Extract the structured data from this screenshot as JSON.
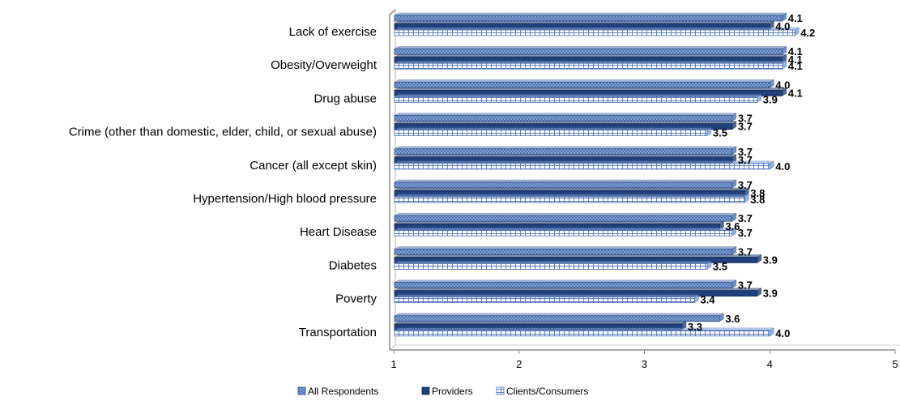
{
  "chart_data": {
    "type": "bar",
    "orientation": "horizontal",
    "categories": [
      "Lack of exercise",
      "Obesity/Overweight",
      "Drug abuse",
      "Crime (other than domestic, elder, child, or sexual abuse)",
      "Cancer (all except skin)",
      "Hypertension/High blood pressure",
      "Heart Disease",
      "Diabetes",
      "Poverty",
      "Transportation"
    ],
    "series": [
      {
        "name": "All Respondents",
        "values": [
          4.1,
          4.1,
          4.0,
          3.7,
          3.7,
          3.7,
          3.7,
          3.7,
          3.7,
          3.6
        ],
        "labels": [
          "4.1",
          "4.1",
          "4.0",
          "3.7",
          "3.7",
          "3.7",
          "3.7",
          "3.7",
          "3.7",
          "3.6"
        ],
        "color": "#4f74b3"
      },
      {
        "name": "Providers",
        "values": [
          4.0,
          4.1,
          4.1,
          3.7,
          3.7,
          3.8,
          3.6,
          3.9,
          3.9,
          3.3
        ],
        "labels": [
          "4.0",
          "4.1",
          "4.1",
          "3.7",
          "3.7",
          "3.8",
          "3.6",
          "3.9",
          "3.9",
          "3.3"
        ],
        "color": "#1f3f7a"
      },
      {
        "name": "Clients/Consumers",
        "values": [
          4.2,
          4.1,
          3.9,
          3.5,
          4.0,
          3.8,
          3.7,
          3.5,
          3.4,
          4.0
        ],
        "labels": [
          "4.2",
          "4.1",
          "3.9",
          "3.5",
          "4.0",
          "3.8",
          "3.7",
          "3.5",
          "3.4",
          "4.0"
        ],
        "color": "#7fa0d6"
      }
    ],
    "xlim": [
      1,
      5
    ],
    "xticks": [
      "1",
      "2",
      "3",
      "4",
      "5"
    ],
    "grid": false,
    "legend_position": "bottom"
  }
}
